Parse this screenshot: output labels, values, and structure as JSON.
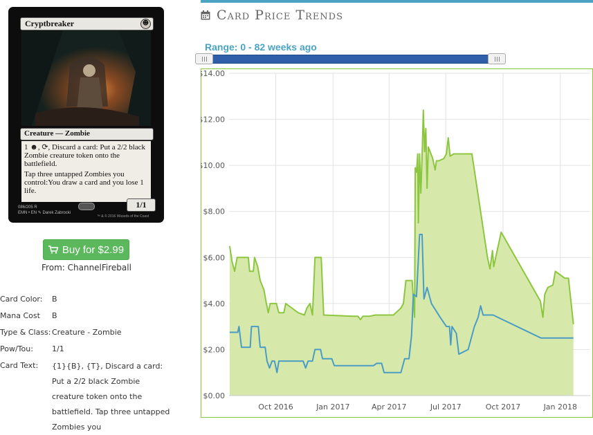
{
  "card": {
    "name": "Cryptbreaker",
    "mana_symbol": "☻",
    "type_line": "Creature — Zombie",
    "rules_1": "{1}{B}, {T}, Discard a card: Put a 2/2 black Zombie creature token onto the battlefield.",
    "rules_1_display": "1 ☻, ⟳, Discard a card: Put a 2/2 black Zombie creature token onto the battlefield.",
    "rules_2": "Tap three untapped Zombies you control:You draw a card and you lose 1 life.",
    "pt": "1/1",
    "footer_line1": "086/205 R",
    "footer_line2": "EMN • EN  ✎ Darek Zabrocki",
    "footer_copyright": "™ & © 2016 Wizards of the Coast"
  },
  "buy": {
    "label": "Buy for $2.99",
    "from": "From: ChannelFireball",
    "icon": "shopping-cart-icon"
  },
  "details": [
    {
      "label": "Card Color:",
      "value": "B"
    },
    {
      "label": "Mana Cost",
      "value": "B"
    },
    {
      "label": "Type & Class:",
      "value": "Creature - Zombie"
    },
    {
      "label": "Pow/Tou:",
      "value": "1/1"
    },
    {
      "label": "Card Text:",
      "value": "{1}{B}, {T}, Discard a card: Put a 2/2 black Zombie creature token onto the battlefield. Tap three untapped Zombies you"
    }
  ],
  "trends": {
    "title": "Card Price Trends",
    "range_label": "Range: 0 - 82 weeks ago",
    "icon": "calendar-icon",
    "colors": {
      "accent": "#4aa3c2",
      "slider": "#2f5fa8",
      "green": "#8cc63f",
      "blue": "#4a9cc4"
    }
  },
  "chart_data": {
    "type": "area",
    "x_ticks": [
      "Oct 2016",
      "Jan 2017",
      "Apr 2017",
      "Jul 2017",
      "Oct 2017",
      "Jan 2018"
    ],
    "y_ticks": [
      "$0.00",
      "$2.00",
      "$4.00",
      "$6.00",
      "$8.00",
      "$10.00",
      "$12.00",
      "$14.00"
    ],
    "ylim": [
      0,
      14
    ],
    "xlim": [
      "2016-07-18",
      "2018-02-18"
    ],
    "grid": true,
    "series": [
      {
        "kind": "area",
        "color": "#8cc63f",
        "points": [
          [
            "2016-07-19",
            6.5
          ],
          [
            "2016-07-23",
            5.8
          ],
          [
            "2016-07-27",
            5.4
          ],
          [
            "2016-07-31",
            6.0
          ],
          [
            "2016-08-10",
            6.0
          ],
          [
            "2016-08-18",
            6.0
          ],
          [
            "2016-08-20",
            5.4
          ],
          [
            "2016-08-26",
            5.4
          ],
          [
            "2016-08-28",
            6.0
          ],
          [
            "2016-09-02",
            5.6
          ],
          [
            "2016-09-06",
            5.0
          ],
          [
            "2016-09-12",
            4.6
          ],
          [
            "2016-09-16",
            4.0
          ],
          [
            "2016-09-19",
            3.6
          ],
          [
            "2016-09-22",
            4.0
          ],
          [
            "2016-10-02",
            4.0
          ],
          [
            "2016-10-06",
            3.6
          ],
          [
            "2016-10-14",
            3.6
          ],
          [
            "2016-10-17",
            4.0
          ],
          [
            "2016-10-27",
            3.8
          ],
          [
            "2016-11-06",
            3.6
          ],
          [
            "2016-11-16",
            3.5
          ],
          [
            "2016-11-20",
            3.8
          ],
          [
            "2016-11-25",
            4.0
          ],
          [
            "2016-11-29",
            3.5
          ],
          [
            "2016-12-03",
            6.0
          ],
          [
            "2016-12-13",
            6.0
          ],
          [
            "2016-12-17",
            3.5
          ],
          [
            "2017-02-01",
            3.45
          ],
          [
            "2017-02-10",
            3.45
          ],
          [
            "2017-02-14",
            3.3
          ],
          [
            "2017-02-18",
            3.45
          ],
          [
            "2017-03-01",
            3.45
          ],
          [
            "2017-03-10",
            3.5
          ],
          [
            "2017-03-20",
            3.5
          ],
          [
            "2017-04-04",
            3.5
          ],
          [
            "2017-04-08",
            3.5
          ],
          [
            "2017-04-16",
            3.7
          ],
          [
            "2017-04-20",
            3.8
          ],
          [
            "2017-04-24",
            4.0
          ],
          [
            "2017-04-28",
            5.0
          ],
          [
            "2017-05-08",
            5.0
          ],
          [
            "2017-05-12",
            3.4
          ],
          [
            "2017-05-13",
            9.9
          ],
          [
            "2017-05-15",
            9.7
          ],
          [
            "2017-05-17",
            10.5
          ],
          [
            "2017-05-18",
            7.5
          ],
          [
            "2017-05-20",
            10.5
          ],
          [
            "2017-05-22",
            8.8
          ],
          [
            "2017-05-24",
            10.4
          ],
          [
            "2017-05-26",
            12.4
          ],
          [
            "2017-05-28",
            10.6
          ],
          [
            "2017-05-30",
            11.6
          ],
          [
            "2017-06-01",
            9.0
          ],
          [
            "2017-06-03",
            10.8
          ],
          [
            "2017-06-10",
            10.3
          ],
          [
            "2017-06-14",
            9.8
          ],
          [
            "2017-06-16",
            10.2
          ],
          [
            "2017-06-20",
            10.2
          ],
          [
            "2017-06-28",
            10.3
          ],
          [
            "2017-07-02",
            10.5
          ],
          [
            "2017-07-05",
            11.2
          ],
          [
            "2017-07-08",
            10.4
          ],
          [
            "2017-07-14",
            10.5
          ],
          [
            "2017-08-12",
            10.5
          ],
          [
            "2017-09-06",
            6.0
          ],
          [
            "2017-09-10",
            5.5
          ],
          [
            "2017-09-14",
            6.3
          ],
          [
            "2017-09-16",
            5.6
          ],
          [
            "2017-09-28",
            7.1
          ],
          [
            "2017-11-30",
            4.1
          ],
          [
            "2017-12-04",
            3.4
          ],
          [
            "2017-12-07",
            4.4
          ],
          [
            "2017-12-12",
            4.7
          ],
          [
            "2017-12-20",
            4.8
          ],
          [
            "2017-12-24",
            5.4
          ],
          [
            "2018-01-08",
            5.1
          ],
          [
            "2018-01-14",
            5.1
          ],
          [
            "2018-01-22",
            3.1
          ]
        ]
      },
      {
        "kind": "line",
        "color": "#4a9cc4",
        "points": [
          [
            "2016-07-19",
            2.75
          ],
          [
            "2016-08-01",
            2.75
          ],
          [
            "2016-08-03",
            3.0
          ],
          [
            "2016-08-07",
            2.1
          ],
          [
            "2016-08-21",
            2.1
          ],
          [
            "2016-08-23",
            3.0
          ],
          [
            "2016-09-03",
            3.0
          ],
          [
            "2016-09-06",
            2.1
          ],
          [
            "2016-09-14",
            2.1
          ],
          [
            "2016-09-17",
            1.5
          ],
          [
            "2016-09-21",
            1.2
          ],
          [
            "2016-09-25",
            1.5
          ],
          [
            "2016-09-29",
            1.5
          ],
          [
            "2016-10-03",
            1.0
          ],
          [
            "2016-10-06",
            1.5
          ],
          [
            "2016-11-14",
            1.5
          ],
          [
            "2016-11-18",
            1.2
          ],
          [
            "2016-11-22",
            1.5
          ],
          [
            "2016-11-29",
            1.5
          ],
          [
            "2016-12-03",
            2.0
          ],
          [
            "2016-12-12",
            2.0
          ],
          [
            "2016-12-15",
            1.6
          ],
          [
            "2016-12-30",
            1.6
          ],
          [
            "2017-01-03",
            1.3
          ],
          [
            "2017-03-07",
            1.3
          ],
          [
            "2017-03-12",
            1.4
          ],
          [
            "2017-03-20",
            1.4
          ],
          [
            "2017-03-24",
            1.0
          ],
          [
            "2017-04-20",
            1.0
          ],
          [
            "2017-04-26",
            1.6
          ],
          [
            "2017-05-03",
            1.6
          ],
          [
            "2017-05-07",
            2.6
          ],
          [
            "2017-05-10",
            4.4
          ],
          [
            "2017-05-15",
            4.3
          ],
          [
            "2017-05-20",
            7.0
          ],
          [
            "2017-05-24",
            7.0
          ],
          [
            "2017-05-27",
            4.2
          ],
          [
            "2017-06-01",
            4.7
          ],
          [
            "2017-06-08",
            4.0
          ],
          [
            "2017-06-22",
            3.4
          ],
          [
            "2017-07-02",
            3.0
          ],
          [
            "2017-07-07",
            3.0
          ],
          [
            "2017-07-09",
            2.2
          ],
          [
            "2017-07-11",
            3.0
          ],
          [
            "2017-07-18",
            2.7
          ],
          [
            "2017-07-22",
            1.8
          ],
          [
            "2017-08-06",
            2.0
          ],
          [
            "2017-08-16",
            3.0
          ],
          [
            "2017-08-22",
            3.4
          ],
          [
            "2017-08-26",
            3.9
          ],
          [
            "2017-08-30",
            3.5
          ],
          [
            "2017-09-15",
            3.5
          ],
          [
            "2017-12-01",
            2.5
          ],
          [
            "2018-01-22",
            2.5
          ]
        ]
      }
    ]
  }
}
